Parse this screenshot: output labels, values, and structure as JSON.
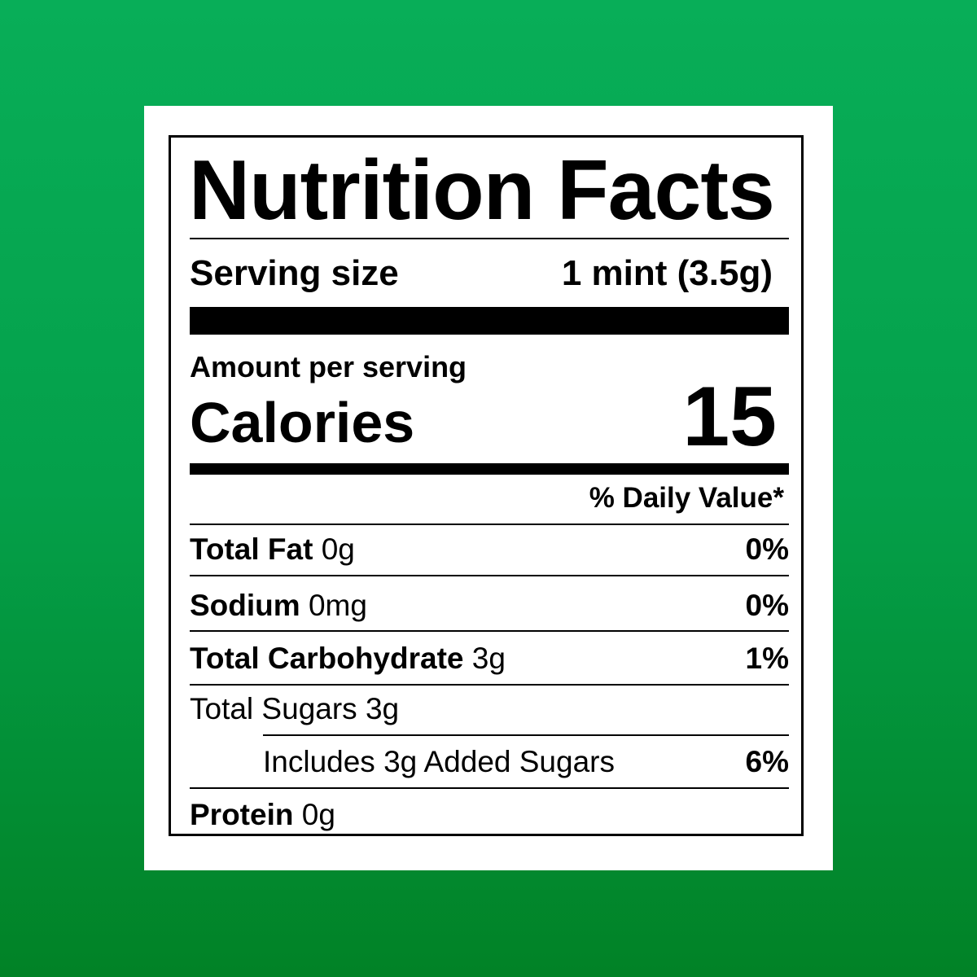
{
  "background_color": "#06a44f",
  "label": {
    "title": "Nutrition Facts",
    "serving_size_label": "Serving size",
    "serving_size_value": "1 mint (3.5g)",
    "amount_per_serving": "Amount per serving",
    "calories_label": "Calories",
    "calories_value": "15",
    "daily_value_header": "% Daily Value*",
    "nutrients": [
      {
        "name": "Total Fat",
        "amount": "0g",
        "dv": "0%"
      },
      {
        "name": "Sodium",
        "amount": "0mg",
        "dv": "0%"
      },
      {
        "name": "Total Carbohydrate",
        "amount": "3g",
        "dv": "1%"
      },
      {
        "name": "Total Sugars 3g",
        "amount": "",
        "dv": ""
      },
      {
        "name": "Includes 3g Added Sugars",
        "amount": "",
        "dv": "6%"
      },
      {
        "name": "Protein",
        "amount": "0g",
        "dv": ""
      }
    ]
  }
}
